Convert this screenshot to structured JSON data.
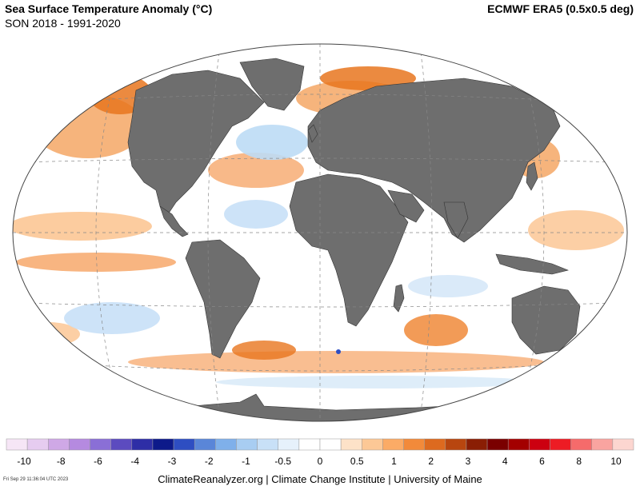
{
  "header": {
    "title": "Sea Surface Temperature Anomaly (°C)",
    "subtitle": "SON 2018 - 1991-2020",
    "source": "ECMWF ERA5 (0.5x0.5 deg)"
  },
  "legend": {
    "swatch_colors": [
      "#f6e6f6",
      "#e6ccf0",
      "#cfa8e6",
      "#b58ae0",
      "#8a6fd6",
      "#5c4bbf",
      "#2e2ea6",
      "#0d1a8a",
      "#2e4ec2",
      "#5a86d8",
      "#7fb0ea",
      "#a8cdf2",
      "#c8e0f7",
      "#e6f1fb",
      "#ffffff",
      "#ffffff",
      "#fde2c8",
      "#fcc896",
      "#fbab66",
      "#f28a3a",
      "#dd6a1f",
      "#b8460f",
      "#8a1e04",
      "#7a0000",
      "#a30000",
      "#cc0010",
      "#ed1c24",
      "#f56b6b",
      "#f9a4a0",
      "#fcd6d0"
    ],
    "tick_labels": [
      "-10",
      "-8",
      "-6",
      "-4",
      "-3",
      "-2",
      "-1",
      "-0.5",
      "0",
      "0.5",
      "1",
      "2",
      "3",
      "4",
      "6",
      "8",
      "10"
    ]
  },
  "footer": {
    "credit": "ClimateReanalyzer.org | Climate Change Institute | University of Maine",
    "timestamp": "Fri Sep 29 11:36:04 UTC 2023"
  },
  "map": {
    "projection": "Winkel tripel",
    "land_color": "#6e6e6e",
    "ocean_color": "#ffffff",
    "warm_color": "#f7a35c",
    "cool_color": "#bcdcf5"
  }
}
